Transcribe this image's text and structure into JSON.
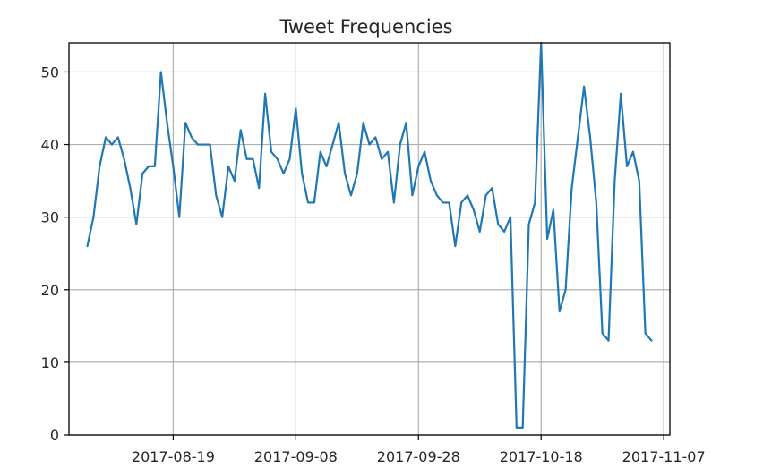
{
  "chart_data": {
    "type": "line",
    "title": "Tweet Frequencies",
    "xlabel": "",
    "ylabel": "",
    "x_type": "date",
    "x_start": "2017-08-05",
    "xlim": [
      "2017-08-02",
      "2017-11-08"
    ],
    "ylim": [
      0,
      54
    ],
    "x_ticks": [
      "2017-08-19",
      "2017-09-08",
      "2017-09-28",
      "2017-10-18",
      "2017-11-07"
    ],
    "y_ticks": [
      0,
      10,
      20,
      30,
      40,
      50
    ],
    "grid": true,
    "series": [
      {
        "name": "",
        "color": "#1f77b4",
        "values": [
          26,
          30,
          37,
          41,
          40,
          41,
          38,
          34,
          29,
          36,
          37,
          37,
          50,
          43,
          37,
          30,
          43,
          41,
          40,
          40,
          40,
          33,
          30,
          37,
          35,
          42,
          38,
          38,
          34,
          47,
          39,
          38,
          36,
          38,
          45,
          36,
          32,
          32,
          39,
          37,
          40,
          43,
          36,
          33,
          36,
          43,
          40,
          41,
          38,
          39,
          32,
          40,
          43,
          33,
          37,
          39,
          35,
          33,
          32,
          32,
          26,
          32,
          33,
          31,
          28,
          33,
          34,
          29,
          28,
          30,
          1,
          1,
          29,
          32,
          54,
          27,
          31,
          17,
          20,
          34,
          41,
          48,
          41,
          32,
          14,
          13,
          35,
          47,
          37,
          39,
          35,
          14,
          13
        ]
      }
    ]
  }
}
